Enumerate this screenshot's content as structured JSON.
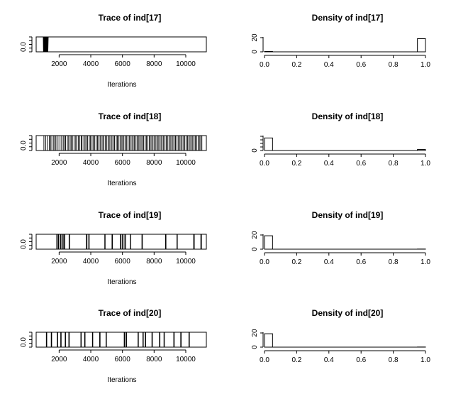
{
  "colors": {
    "background": "#ffffff",
    "ink": "#000000"
  },
  "chart_data": [
    {
      "type": "line",
      "title": "Trace of ind[17]",
      "xlabel": "Iterations",
      "ylabel": "",
      "xlim": [
        550,
        11300
      ],
      "ylim": [
        0,
        1
      ],
      "x_ticks": [
        2000,
        4000,
        6000,
        8000,
        10000
      ],
      "y_ticks": [
        0
      ],
      "y_tick_labels": [
        "0.0"
      ],
      "series": [
        {
          "values": [
            [
              1000,
              1
            ],
            [
              1010,
              0
            ],
            [
              1030,
              1
            ],
            [
              1040,
              0
            ],
            [
              1050,
              1
            ],
            [
              1060,
              0
            ],
            [
              1070,
              1
            ],
            [
              1080,
              0
            ],
            [
              1100,
              1
            ],
            [
              1110,
              0
            ],
            [
              1125,
              1
            ],
            [
              1135,
              0
            ],
            [
              1145,
              1
            ],
            [
              1160,
              0
            ],
            [
              1175,
              1
            ],
            [
              1185,
              0
            ],
            [
              1200,
              1
            ],
            [
              1215,
              0
            ],
            [
              1235,
              1
            ],
            [
              1250,
              0
            ],
            [
              1270,
              1
            ],
            [
              1290,
              0
            ],
            [
              1310,
              1
            ],
            [
              11300,
              1
            ]
          ]
        }
      ]
    },
    {
      "type": "bar",
      "title": "Density of ind[17]",
      "xlabel": "",
      "xlim": [
        0,
        1
      ],
      "ylim": [
        0,
        22
      ],
      "x_ticks": [
        0.0,
        0.2,
        0.4,
        0.6,
        0.8,
        1.0
      ],
      "x_tick_labels": [
        "0.0",
        "0.2",
        "0.4",
        "0.6",
        "0.8",
        "1.0"
      ],
      "y_ticks": [
        0,
        20
      ],
      "y_tick_labels": [
        "0",
        "20"
      ],
      "bin_width": 0.05,
      "bins": [
        {
          "x0": 0.0,
          "x1": 0.05,
          "density": 0.6
        },
        {
          "x0": 0.95,
          "x1": 1.0,
          "density": 19.4
        }
      ]
    },
    {
      "type": "line",
      "title": "Trace of ind[18]",
      "xlabel": "Iterations",
      "ylabel": "",
      "xlim": [
        550,
        11300
      ],
      "ylim": [
        0,
        1
      ],
      "x_ticks": [
        2000,
        4000,
        6000,
        8000,
        10000
      ],
      "y_ticks": [
        0
      ],
      "y_tick_labels": [
        "0.0"
      ],
      "switches": [
        1040,
        1150,
        1250,
        1380,
        1460,
        1540,
        1660,
        1740,
        1800,
        1930,
        2060,
        2160,
        2260,
        2340,
        2410,
        2520,
        2600,
        2700,
        2780,
        2840,
        2940,
        3050,
        3120,
        3220,
        3310,
        3400,
        3450,
        3560,
        3640,
        3720,
        3800,
        3910,
        3980,
        4080,
        4150,
        4240,
        4330,
        4420,
        4500,
        4590,
        4660,
        4760,
        4830,
        4920,
        5010,
        5090,
        5170,
        5260,
        5340,
        5430,
        5500,
        5610,
        5680,
        5760,
        5850,
        5930,
        6010,
        6090,
        6180,
        6250,
        6340,
        6430,
        6500,
        6600,
        6680,
        6760,
        6850,
        6930,
        7010,
        7090,
        7180,
        7260,
        7340,
        7440,
        7510,
        7600,
        7690,
        7760,
        7850,
        7930,
        8010,
        8110,
        8190,
        8260,
        8350,
        8440,
        8510,
        8600,
        8690,
        8770,
        8850,
        8940,
        9020,
        9110,
        9190,
        9270,
        9350,
        9440,
        9520,
        9610,
        9690,
        9770,
        9860,
        9940,
        10020,
        10110,
        10190,
        10270,
        10360,
        10440,
        10530,
        10610,
        10690,
        10780,
        10860,
        10940,
        11020
      ],
      "initial_state": 1,
      "end_state": 1
    },
    {
      "type": "bar",
      "title": "Density of ind[18]",
      "xlabel": "",
      "xlim": [
        0,
        1
      ],
      "ylim": [
        0,
        22
      ],
      "x_ticks": [
        0.0,
        0.2,
        0.4,
        0.6,
        0.8,
        1.0
      ],
      "x_tick_labels": [
        "0.0",
        "0.2",
        "0.4",
        "0.6",
        "0.8",
        "1.0"
      ],
      "y_ticks": [
        0
      ],
      "y_tick_labels": [
        "0"
      ],
      "y_minor_ticks": [
        0,
        5,
        10,
        15,
        20
      ],
      "bin_width": 0.05,
      "bins": [
        {
          "x0": 0.0,
          "x1": 0.05,
          "density": 18.5
        },
        {
          "x0": 0.95,
          "x1": 1.0,
          "density": 1.5
        }
      ]
    },
    {
      "type": "line",
      "title": "Trace of ind[19]",
      "xlabel": "Iterations",
      "ylabel": "",
      "xlim": [
        550,
        11300
      ],
      "ylim": [
        0,
        1
      ],
      "x_ticks": [
        2000,
        4000,
        6000,
        8000,
        10000
      ],
      "y_ticks": [
        0
      ],
      "y_tick_labels": [
        "0.0"
      ],
      "pulses": [
        [
          1850,
          1880
        ],
        [
          1950,
          1980
        ],
        [
          2080,
          2120
        ],
        [
          2230,
          2260
        ],
        [
          2330,
          2360
        ],
        [
          2630,
          2660
        ],
        [
          3720,
          3760
        ],
        [
          3870,
          3900
        ],
        [
          4880,
          4910
        ],
        [
          5340,
          5370
        ],
        [
          5870,
          5910
        ],
        [
          6000,
          6040
        ],
        [
          6150,
          6200
        ],
        [
          6500,
          6520
        ],
        [
          7230,
          7260
        ],
        [
          8720,
          8750
        ],
        [
          9440,
          9470
        ],
        [
          10500,
          10540
        ],
        [
          10950,
          10990
        ]
      ]
    },
    {
      "type": "bar",
      "title": "Density of ind[19]",
      "xlabel": "",
      "xlim": [
        0,
        1
      ],
      "ylim": [
        0,
        22
      ],
      "x_ticks": [
        0.0,
        0.2,
        0.4,
        0.6,
        0.8,
        1.0
      ],
      "x_tick_labels": [
        "0.0",
        "0.2",
        "0.4",
        "0.6",
        "0.8",
        "1.0"
      ],
      "y_ticks": [
        0,
        20
      ],
      "y_tick_labels": [
        "0",
        "20"
      ],
      "bin_width": 0.05,
      "bins": [
        {
          "x0": 0.0,
          "x1": 0.05,
          "density": 19.8
        },
        {
          "x0": 0.95,
          "x1": 1.0,
          "density": 0.2
        }
      ]
    },
    {
      "type": "line",
      "title": "Trace of ind[20]",
      "xlabel": "Iterations",
      "ylabel": "",
      "xlim": [
        550,
        11300
      ],
      "ylim": [
        0,
        1
      ],
      "x_ticks": [
        2000,
        4000,
        6000,
        8000,
        10000
      ],
      "y_ticks": [
        0
      ],
      "y_tick_labels": [
        "0.0"
      ],
      "pulses": [
        [
          1190,
          1220
        ],
        [
          1500,
          1530
        ],
        [
          1880,
          1910
        ],
        [
          2100,
          2130
        ],
        [
          2380,
          2410
        ],
        [
          2610,
          2640
        ],
        [
          3370,
          3400
        ],
        [
          3610,
          3640
        ],
        [
          4100,
          4130
        ],
        [
          4560,
          4590
        ],
        [
          4960,
          4990
        ],
        [
          6110,
          6140
        ],
        [
          6230,
          6260
        ],
        [
          6980,
          7010
        ],
        [
          7290,
          7320
        ],
        [
          7440,
          7470
        ],
        [
          7860,
          7890
        ],
        [
          8340,
          8370
        ],
        [
          8620,
          8650
        ],
        [
          9240,
          9270
        ],
        [
          9680,
          9710
        ],
        [
          10200,
          10230
        ]
      ]
    },
    {
      "type": "bar",
      "title": "Density of ind[20]",
      "xlabel": "",
      "xlim": [
        0,
        1
      ],
      "ylim": [
        0,
        22
      ],
      "x_ticks": [
        0.0,
        0.2,
        0.4,
        0.6,
        0.8,
        1.0
      ],
      "x_tick_labels": [
        "0.0",
        "0.2",
        "0.4",
        "0.6",
        "0.8",
        "1.0"
      ],
      "y_ticks": [
        0,
        20
      ],
      "y_tick_labels": [
        "0",
        "20"
      ],
      "bin_width": 0.05,
      "bins": [
        {
          "x0": 0.0,
          "x1": 0.05,
          "density": 19.8
        },
        {
          "x0": 0.95,
          "x1": 1.0,
          "density": 0.2
        }
      ]
    }
  ]
}
